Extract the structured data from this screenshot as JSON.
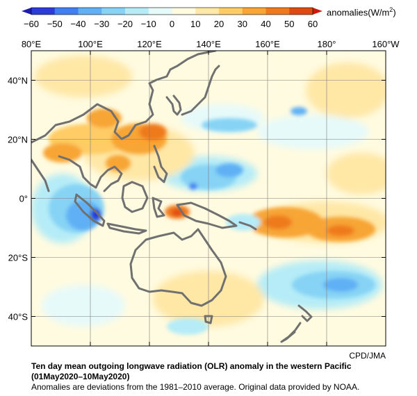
{
  "colorbar": {
    "unit_label": "anomalies(W/m",
    "unit_sup": "2",
    "unit_tail": ")",
    "ticks": [
      "−60",
      "−50",
      "−40",
      "−30",
      "−20",
      "−10",
      "0",
      "10",
      "20",
      "30",
      "40",
      "50",
      "60"
    ],
    "colors": [
      "#2b3cd8",
      "#3f7ff0",
      "#5fb0f5",
      "#86d3f5",
      "#b5ecf7",
      "#e6fafa",
      "#fffbe0",
      "#ffe7a6",
      "#ffcc66",
      "#f7a534",
      "#ef7a1e",
      "#e04a12"
    ]
  },
  "map": {
    "lon_labels": [
      "80°E",
      "100°E",
      "120°E",
      "140°E",
      "160°E",
      "180°",
      "160°W"
    ],
    "lat_labels": [
      "40°N",
      "20°N",
      "0°",
      "20°S",
      "40°S"
    ],
    "coastline_color": "#707070",
    "grid_color": "#7a7a7a"
  },
  "credit": "CPD/JMA",
  "caption": {
    "title": "Ten day mean outgoing longwave radiation (OLR) anomaly in the western Pacific",
    "period": "(01May2020–10May2020)",
    "note": "Anomalies are deviations from the 1981–2010 average. Original data provided by NOAA."
  }
}
